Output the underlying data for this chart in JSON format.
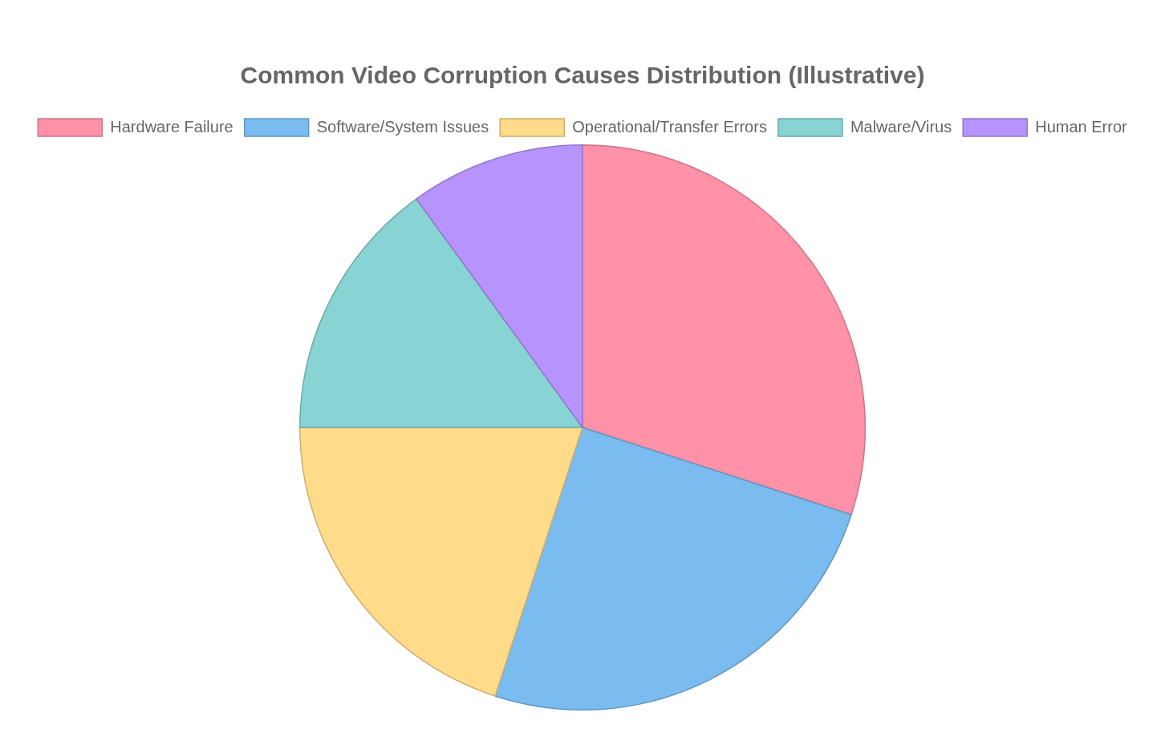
{
  "chart_data": {
    "type": "pie",
    "title": "Common Video Corruption Causes Distribution (Illustrative)",
    "categories": [
      "Hardware Failure",
      "Software/System Issues",
      "Operational/Transfer Errors",
      "Malware/Virus",
      "Human Error"
    ],
    "values": [
      30,
      25,
      20,
      15,
      10
    ],
    "colors": [
      "#ff91a8",
      "#7abcf0",
      "#ffdb8a",
      "#88d3d3",
      "#b794fd"
    ],
    "legend": "top"
  }
}
